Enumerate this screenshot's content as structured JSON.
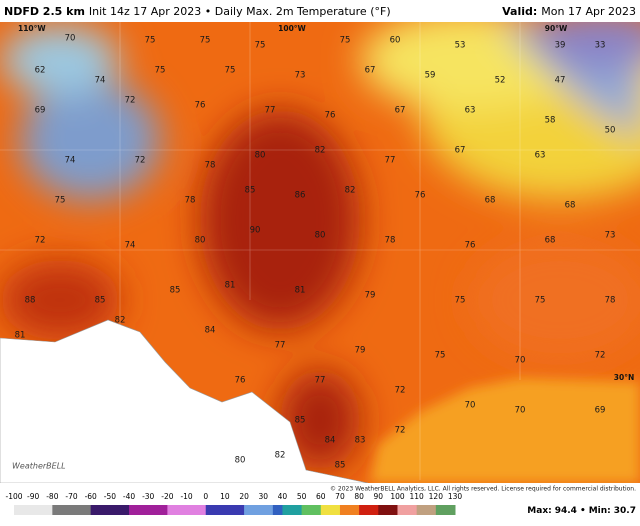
{
  "header": {
    "title": "NDFD 2.5 km",
    "subtitle": "Init 14z 17 Apr 2023 • Daily Max. 2m Temperature (°F)",
    "valid_label": "Valid:",
    "valid_date": "Mon 17 Apr 2023"
  },
  "geo_labels": [
    "110°W",
    "100°W",
    "90°W",
    "30°N"
  ],
  "map_labels": [
    70,
    75,
    75,
    75,
    75,
    60,
    53,
    39,
    33,
    62,
    74,
    75,
    75,
    73,
    67,
    59,
    52,
    47,
    69,
    72,
    76,
    77,
    76,
    67,
    63,
    58,
    50,
    74,
    72,
    78,
    80,
    82,
    77,
    67,
    63,
    75,
    78,
    85,
    86,
    82,
    76,
    68,
    68,
    72,
    74,
    80,
    90,
    80,
    78,
    76,
    68,
    73,
    88,
    85,
    85,
    81,
    81,
    79,
    75,
    75,
    78,
    81,
    82,
    84,
    77,
    79,
    75,
    70,
    72,
    76,
    77,
    72,
    70,
    70,
    69,
    85,
    84,
    83,
    72,
    85,
    82,
    80
  ],
  "watermark": "WeatherBELL",
  "copyright": "© 2023 WeatherBELL Analytics, LLC. All rights reserved. License required for commercial distribution.",
  "colorbar": {
    "ticks": [
      -100,
      -90,
      -80,
      -70,
      -60,
      -50,
      -40,
      -30,
      -20,
      -10,
      0,
      10,
      20,
      30,
      40,
      50,
      60,
      70,
      80,
      90,
      100,
      110,
      120,
      130
    ]
  },
  "stats": {
    "max_label": "Max:",
    "max": 94.4,
    "separator": "•",
    "min_label": "Min:",
    "min": 30.7
  }
}
